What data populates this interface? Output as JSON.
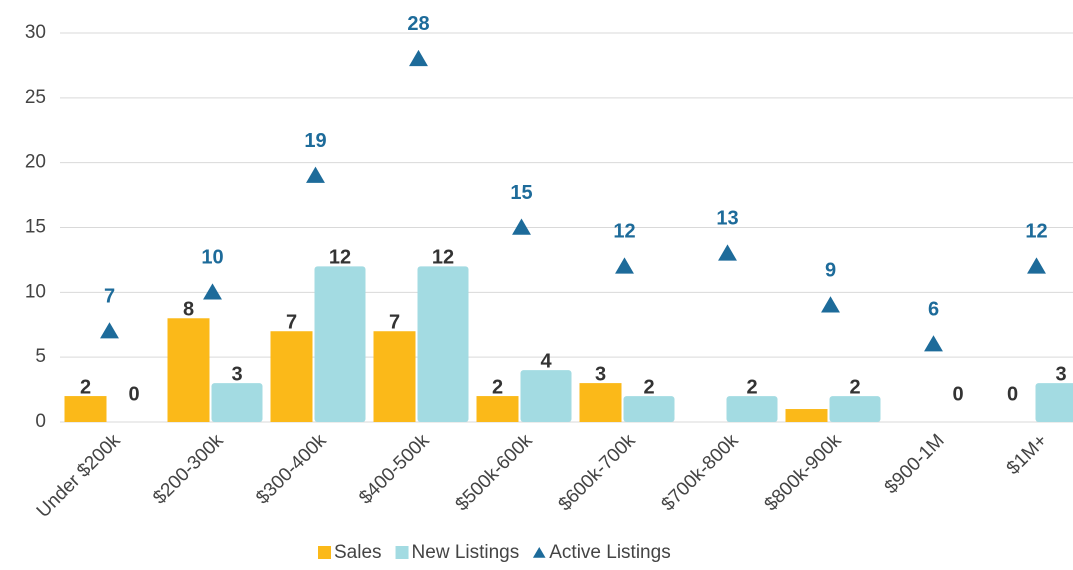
{
  "chart_data": {
    "type": "bar",
    "categories": [
      "Under $200k",
      "$200-300k",
      "$300-400k",
      "$400-500k",
      "$500k-600k",
      "$600k-700k",
      "$700k-800k",
      "$800k-900k",
      "$900-1M",
      "$1M+"
    ],
    "series": [
      {
        "name": "Sales",
        "color": "#fbb919",
        "values": [
          2,
          8,
          7,
          7,
          2,
          3,
          0,
          1,
          0,
          0
        ],
        "value_labels": [
          "2",
          "8",
          "7",
          "7",
          "2",
          "3",
          null,
          null,
          null,
          "0"
        ]
      },
      {
        "name": "New Listings",
        "color": "#a3dbe2",
        "values": [
          0,
          3,
          12,
          12,
          4,
          2,
          2,
          2,
          0,
          3
        ]
      },
      {
        "name": "Active Listings",
        "color": "#1d6b9a",
        "marker": "triangle",
        "values": [
          7,
          10,
          19,
          28,
          15,
          12,
          13,
          9,
          6,
          12
        ]
      }
    ],
    "ylim": [
      0,
      30
    ],
    "yticks": [
      0,
      5,
      10,
      15,
      20,
      25,
      30
    ],
    "grid": true,
    "legend": "bottom"
  }
}
